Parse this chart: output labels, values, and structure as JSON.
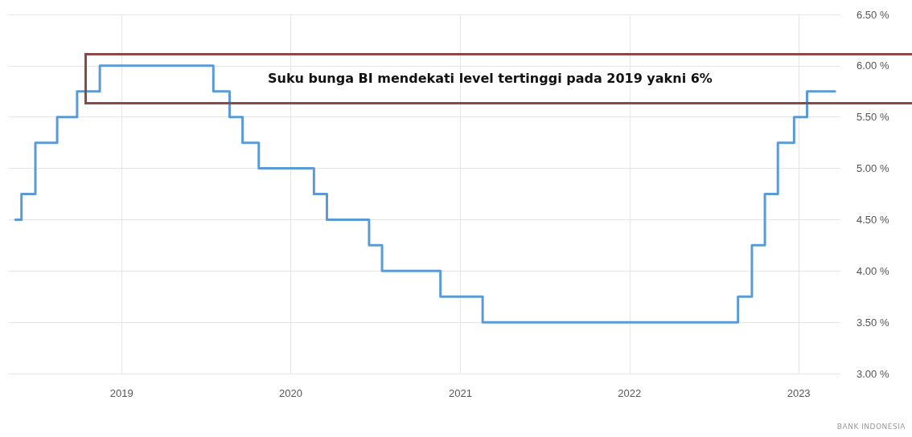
{
  "chart_data": {
    "type": "step",
    "x": [
      "2018-05-17",
      "2018-05-30",
      "2018-06-29",
      "2018-08-15",
      "2018-09-27",
      "2018-11-15",
      "2019-07-18",
      "2019-08-22",
      "2019-09-19",
      "2019-10-24",
      "2020-02-20",
      "2020-03-19",
      "2020-06-18",
      "2020-07-16",
      "2020-11-19",
      "2021-02-18",
      "2022-08-23",
      "2022-09-22",
      "2022-10-20",
      "2022-11-17",
      "2022-12-22",
      "2023-01-19",
      "2023-03-20"
    ],
    "series": [
      {
        "color": "#5b9bd5",
        "values": [
          4.5,
          4.75,
          5.25,
          5.5,
          5.75,
          6.0,
          5.75,
          5.5,
          5.25,
          5.0,
          4.75,
          4.5,
          4.25,
          4.0,
          3.75,
          3.5,
          3.75,
          4.25,
          4.75,
          5.25,
          5.5,
          5.75,
          5.75
        ]
      }
    ],
    "xlim": [
      "2018-05-01",
      "2023-04-01"
    ],
    "xticks": [
      "2019",
      "2020",
      "2021",
      "2022",
      "2023"
    ],
    "ylim": [
      3.0,
      6.5
    ],
    "yticks": [
      {
        "value": 3.0,
        "label": "3.00 %"
      },
      {
        "value": 3.5,
        "label": "3.50 %"
      },
      {
        "value": 4.0,
        "label": "4.00 %"
      },
      {
        "value": 4.5,
        "label": "4.50 %"
      },
      {
        "value": 5.0,
        "label": "5.00 %"
      },
      {
        "value": 5.5,
        "label": "5.50 %"
      },
      {
        "value": 6.0,
        "label": "6.00 %"
      },
      {
        "value": 6.5,
        "label": "6.50 %"
      }
    ],
    "grid": true,
    "marker": "none",
    "line_style": "solid",
    "annotations": [
      "Suku bunga BI mendekati level tertinggi pada 2019 yakni 6%",
      "BANK INDONESIA"
    ]
  }
}
